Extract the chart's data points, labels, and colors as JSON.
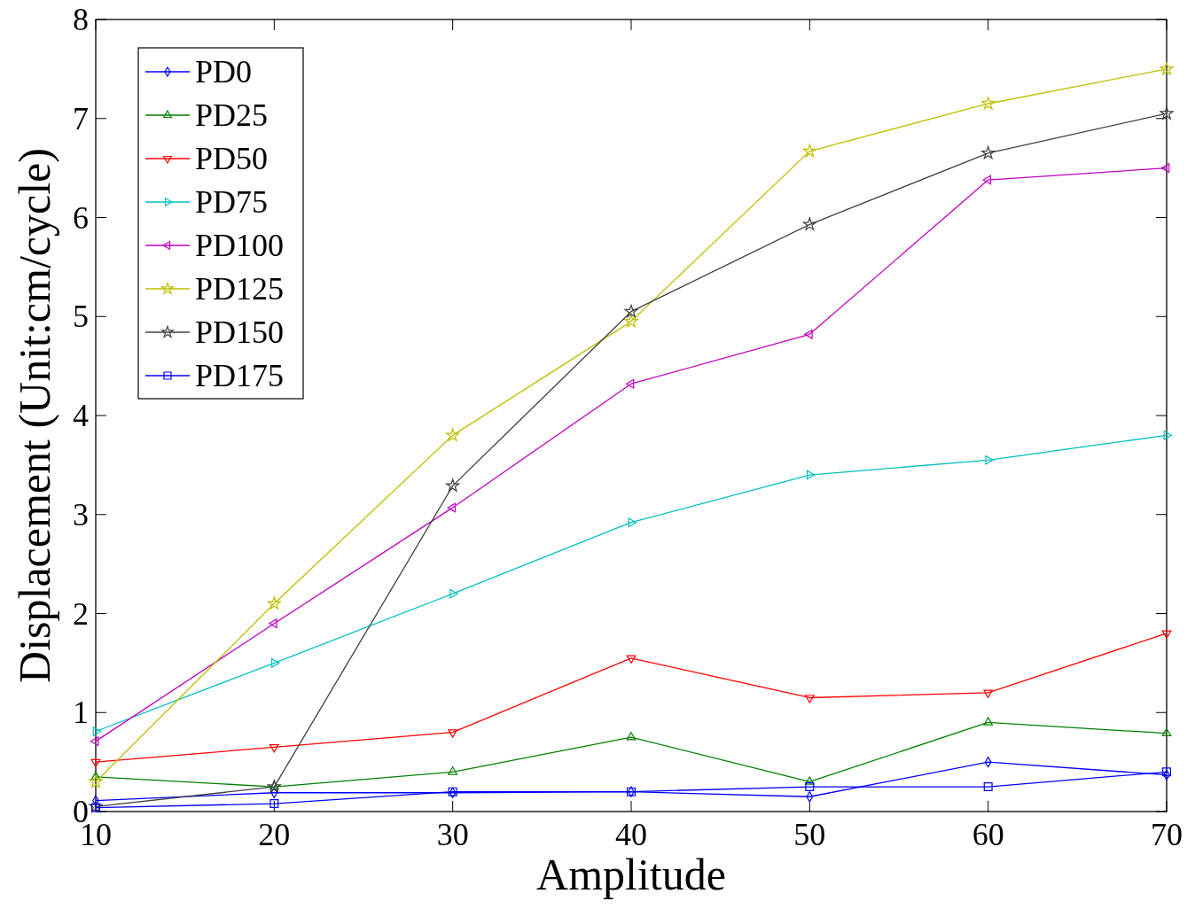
{
  "chart_data": {
    "type": "line",
    "xlabel": "Amplitude",
    "ylabel": "Displacement (Unit:cm/cycle)",
    "x": [
      10,
      20,
      30,
      40,
      50,
      60,
      70
    ],
    "xlim": [
      10,
      70
    ],
    "xticks": [
      10,
      20,
      30,
      40,
      50,
      60,
      70
    ],
    "ylim": [
      0,
      8
    ],
    "yticks": [
      0,
      1,
      2,
      3,
      4,
      5,
      6,
      7,
      8
    ],
    "grid": false,
    "legend": "top left",
    "series": [
      {
        "name": "PD0",
        "color": "#0000ff",
        "marker": "diamond",
        "values": [
          0.11,
          0.19,
          0.19,
          0.2,
          0.15,
          0.5,
          0.37
        ]
      },
      {
        "name": "PD25",
        "color": "#008000",
        "marker": "triangle",
        "values": [
          0.35,
          0.25,
          0.4,
          0.75,
          0.3,
          0.9,
          0.79
        ]
      },
      {
        "name": "PD50",
        "color": "#ff0000",
        "marker": "triangle-down",
        "values": [
          0.5,
          0.65,
          0.8,
          1.55,
          1.15,
          1.2,
          1.8
        ]
      },
      {
        "name": "PD75",
        "color": "#00bfbf",
        "marker": "triangle-right",
        "values": [
          0.81,
          1.5,
          2.2,
          2.92,
          3.4,
          3.55,
          3.8
        ]
      },
      {
        "name": "PD100",
        "color": "#bf00bf",
        "marker": "triangle-left",
        "values": [
          0.71,
          1.9,
          3.07,
          4.32,
          4.82,
          6.38,
          6.5
        ]
      },
      {
        "name": "PD125",
        "color": "#bfbf00",
        "marker": "star",
        "values": [
          0.3,
          2.1,
          3.8,
          4.95,
          6.67,
          7.15,
          7.5
        ]
      },
      {
        "name": "PD150",
        "color": "#404040",
        "marker": "star",
        "values": [
          0.05,
          0.25,
          3.29,
          5.05,
          5.93,
          6.65,
          7.05
        ]
      },
      {
        "name": "PD175",
        "color": "#0000ff",
        "marker": "square",
        "values": [
          0.04,
          0.08,
          0.2,
          0.2,
          0.25,
          0.25,
          0.4
        ]
      }
    ]
  }
}
